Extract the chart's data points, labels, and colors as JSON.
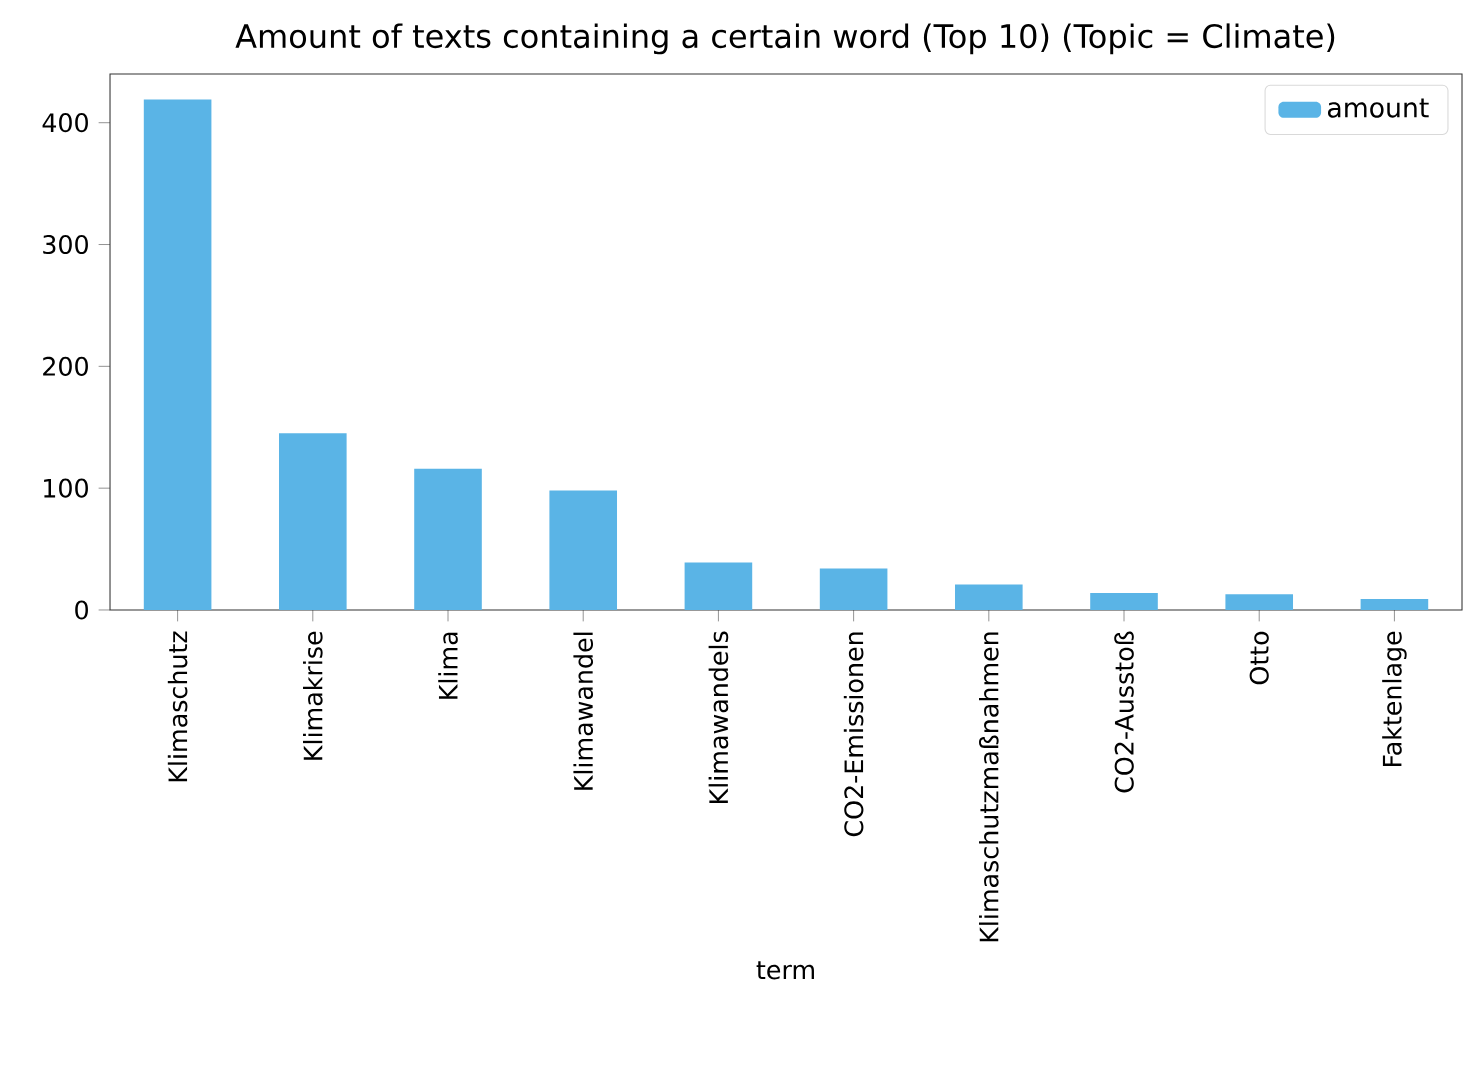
{
  "chart_data": {
    "type": "bar",
    "title": "Amount of texts containing a certain word (Top 10) (Topic = Climate)",
    "xlabel": "term",
    "categories": [
      "Klimaschutz",
      "Klimakrise",
      "Klima",
      "Klimawandel",
      "Klimawandels",
      "CO2-Emissionen",
      "Klimaschutzmaßnahmen",
      "CO2-Ausstoß",
      "Otto",
      "Faktenlage"
    ],
    "series": [
      {
        "name": "amount",
        "color": "#5ab4e6",
        "values": [
          419,
          145,
          116,
          98,
          39,
          34,
          21,
          14,
          13,
          9
        ]
      }
    ],
    "ylim": [
      0,
      440
    ],
    "yticks": [
      0,
      100,
      200,
      300,
      400
    ],
    "grid": false,
    "legend": "top right"
  }
}
